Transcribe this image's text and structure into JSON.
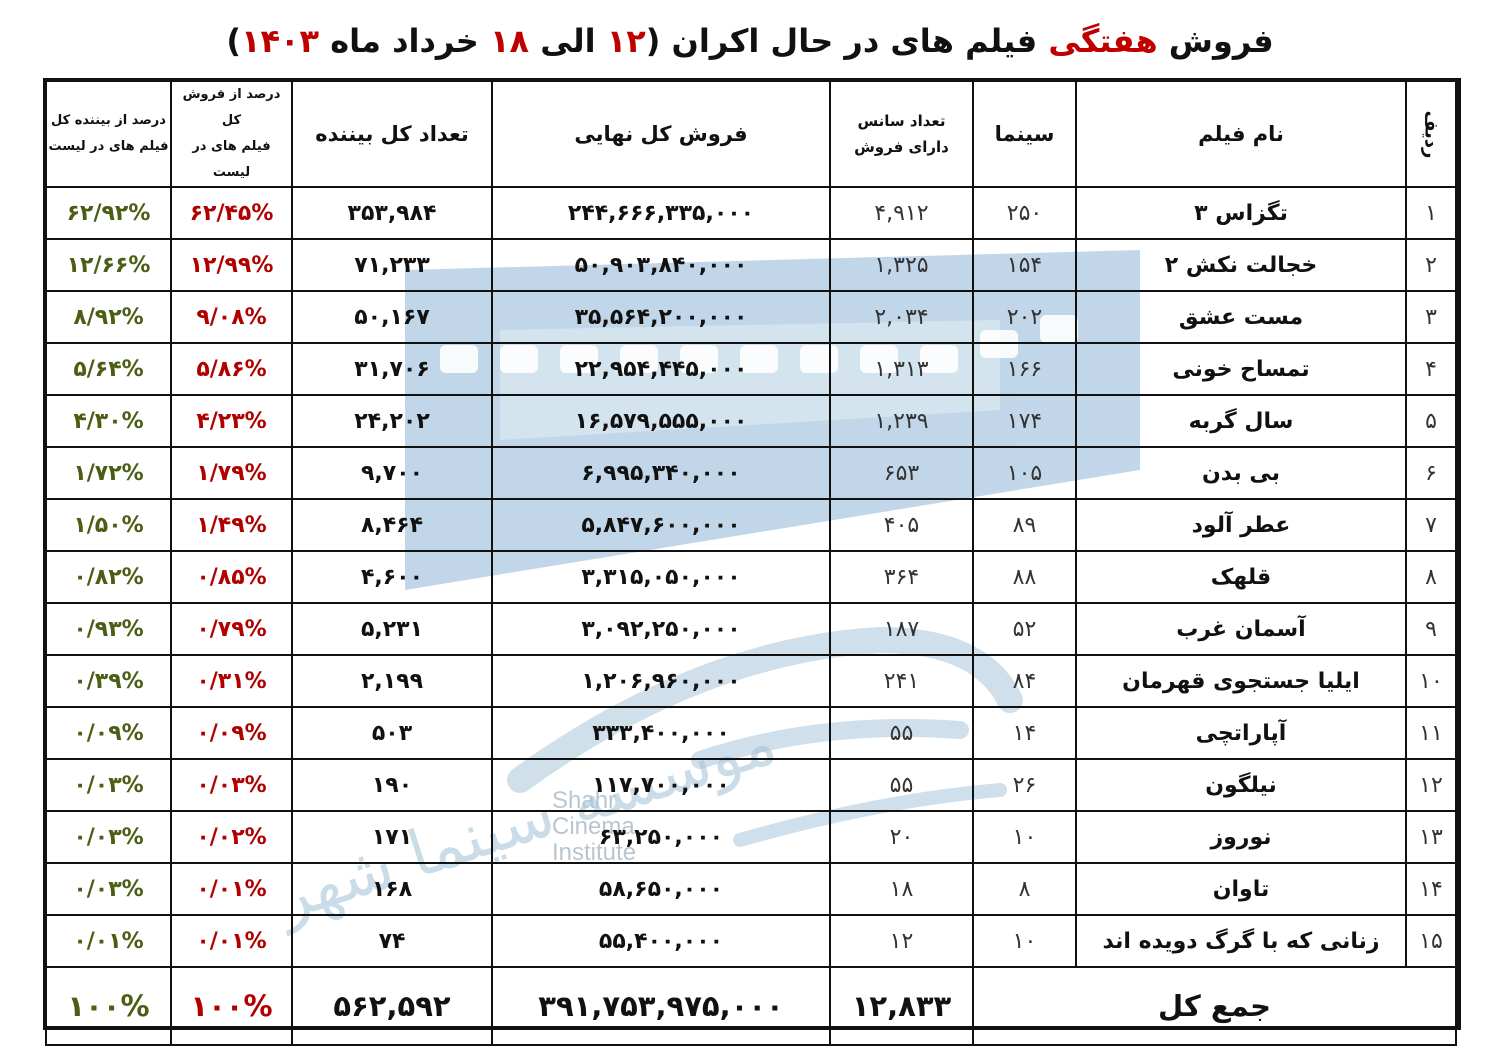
{
  "title": {
    "prefix": "فروش ",
    "accent": "هفتگی",
    "middle": " فیلم های در حال اکران ",
    "range_open": "(",
    "range_start": "۱۲",
    "range_sep": " الی ",
    "range_end": "۱۸",
    "range_tail": " خرداد ماه ",
    "year": "۱۴۰۳",
    "range_close": ")"
  },
  "headers": {
    "rank": "ردیف",
    "film": "نام فیلم",
    "cinema": "سینما",
    "sessions_line1": "تعداد سانس",
    "sessions_line2": "دارای فروش",
    "gross": "فروش کل نهایی",
    "viewers": "تعداد کل بیننده",
    "pct_sales_line1": "درصد از فروش کل",
    "pct_sales_line2": "فیلم های در لیست",
    "pct_viewers_line1": "درصد از بیننده کل",
    "pct_viewers_line2": "فیلم های در لیست"
  },
  "rows": [
    {
      "rank": "۱",
      "film": "تگزاس ۳",
      "cinema": "۲۵۰",
      "sessions": "۴,۹۱۲",
      "gross": "۲۴۴,۶۶۶,۳۳۵,۰۰۰",
      "viewers": "۳۵۳,۹۸۴",
      "pct_sales": "۶۲/۴۵%",
      "pct_viewers": "۶۲/۹۲%"
    },
    {
      "rank": "۲",
      "film": "خجالت نکش ۲",
      "cinema": "۱۵۴",
      "sessions": "۱,۳۲۵",
      "gross": "۵۰,۹۰۳,۸۴۰,۰۰۰",
      "viewers": "۷۱,۲۳۳",
      "pct_sales": "۱۲/۹۹%",
      "pct_viewers": "۱۲/۶۶%"
    },
    {
      "rank": "۳",
      "film": "مست عشق",
      "cinema": "۲۰۲",
      "sessions": "۲,۰۳۴",
      "gross": "۳۵,۵۶۴,۲۰۰,۰۰۰",
      "viewers": "۵۰,۱۶۷",
      "pct_sales": "۹/۰۸%",
      "pct_viewers": "۸/۹۲%"
    },
    {
      "rank": "۴",
      "film": "تمساح خونی",
      "cinema": "۱۶۶",
      "sessions": "۱,۳۱۳",
      "gross": "۲۲,۹۵۴,۴۴۵,۰۰۰",
      "viewers": "۳۱,۷۰۶",
      "pct_sales": "۵/۸۶%",
      "pct_viewers": "۵/۶۴%"
    },
    {
      "rank": "۵",
      "film": "سال گربه",
      "cinema": "۱۷۴",
      "sessions": "۱,۲۳۹",
      "gross": "۱۶,۵۷۹,۵۵۵,۰۰۰",
      "viewers": "۲۴,۲۰۲",
      "pct_sales": "۴/۲۳%",
      "pct_viewers": "۴/۳۰%"
    },
    {
      "rank": "۶",
      "film": "بی بدن",
      "cinema": "۱۰۵",
      "sessions": "۶۵۳",
      "gross": "۶,۹۹۵,۳۴۰,۰۰۰",
      "viewers": "۹,۷۰۰",
      "pct_sales": "۱/۷۹%",
      "pct_viewers": "۱/۷۲%"
    },
    {
      "rank": "۷",
      "film": "عطر آلود",
      "cinema": "۸۹",
      "sessions": "۴۰۵",
      "gross": "۵,۸۴۷,۶۰۰,۰۰۰",
      "viewers": "۸,۴۶۴",
      "pct_sales": "۱/۴۹%",
      "pct_viewers": "۱/۵۰%"
    },
    {
      "rank": "۸",
      "film": "قلهک",
      "cinema": "۸۸",
      "sessions": "۳۶۴",
      "gross": "۳,۳۱۵,۰۵۰,۰۰۰",
      "viewers": "۴,۶۰۰",
      "pct_sales": "۰/۸۵%",
      "pct_viewers": "۰/۸۲%"
    },
    {
      "rank": "۹",
      "film": "آسمان غرب",
      "cinema": "۵۲",
      "sessions": "۱۸۷",
      "gross": "۳,۰۹۲,۲۵۰,۰۰۰",
      "viewers": "۵,۲۳۱",
      "pct_sales": "۰/۷۹%",
      "pct_viewers": "۰/۹۳%"
    },
    {
      "rank": "۱۰",
      "film": "ایلیا جستجوی قهرمان",
      "cinema": "۸۴",
      "sessions": "۲۴۱",
      "gross": "۱,۲۰۶,۹۶۰,۰۰۰",
      "viewers": "۲,۱۹۹",
      "pct_sales": "۰/۳۱%",
      "pct_viewers": "۰/۳۹%"
    },
    {
      "rank": "۱۱",
      "film": "آپاراتچی",
      "cinema": "۱۴",
      "sessions": "۵۵",
      "gross": "۳۳۳,۴۰۰,۰۰۰",
      "viewers": "۵۰۳",
      "pct_sales": "۰/۰۹%",
      "pct_viewers": "۰/۰۹%"
    },
    {
      "rank": "۱۲",
      "film": "نیلگون",
      "cinema": "۲۶",
      "sessions": "۵۵",
      "gross": "۱۱۷,۷۰۰,۰۰۰",
      "viewers": "۱۹۰",
      "pct_sales": "۰/۰۳%",
      "pct_viewers": "۰/۰۳%"
    },
    {
      "rank": "۱۳",
      "film": "نوروز",
      "cinema": "۱۰",
      "sessions": "۲۰",
      "gross": "۶۳,۲۵۰,۰۰۰",
      "viewers": "۱۷۱",
      "pct_sales": "۰/۰۲%",
      "pct_viewers": "۰/۰۳%"
    },
    {
      "rank": "۱۴",
      "film": "تاوان",
      "cinema": "۸",
      "sessions": "۱۸",
      "gross": "۵۸,۶۵۰,۰۰۰",
      "viewers": "۱۶۸",
      "pct_sales": "۰/۰۱%",
      "pct_viewers": "۰/۰۳%"
    },
    {
      "rank": "۱۵",
      "film": "زنانی که با گرگ دویده اند",
      "cinema": "۱۰",
      "sessions": "۱۲",
      "gross": "۵۵,۴۰۰,۰۰۰",
      "viewers": "۷۴",
      "pct_sales": "۰/۰۱%",
      "pct_viewers": "۰/۰۱%"
    }
  ],
  "total": {
    "label": "جمع کل",
    "sessions": "۱۲,۸۳۳",
    "gross": "۳۹۱,۷۵۳,۹۷۵,۰۰۰",
    "viewers": "۵۶۲,۵۹۲",
    "pct_sales": "۱۰۰%",
    "pct_viewers": "۱۰۰%"
  },
  "watermark": {
    "logo_text_line1": "Shahr",
    "logo_text_line2": "Cinema",
    "logo_text_line3": "Institute",
    "logo_script": "موسسه سینما شهر"
  },
  "colors": {
    "accent_red": "#c00000",
    "pct_sales": "#b00000",
    "pct_viewers": "#4b5e14",
    "watermark_blue": "#9ec3dd"
  }
}
